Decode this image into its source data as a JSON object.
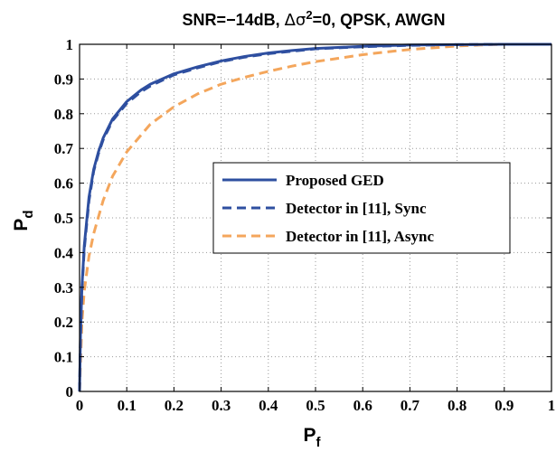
{
  "chart_data": {
    "type": "line",
    "title": {
      "prefix": "SNR=−14dB, ",
      "delta": "Δ",
      "sigma": "σ",
      "sup": "2",
      "suffix": "=0, QPSK, AWGN"
    },
    "xlabel": {
      "main": "P",
      "sub": "f"
    },
    "ylabel": {
      "main": "P",
      "sub": "d"
    },
    "xlim": [
      0,
      1
    ],
    "ylim": [
      0,
      1
    ],
    "xticks": [
      "0",
      "0.1",
      "0.2",
      "0.3",
      "0.4",
      "0.5",
      "0.6",
      "0.7",
      "0.8",
      "0.9",
      "1"
    ],
    "yticks": [
      "0",
      "0.1",
      "0.2",
      "0.3",
      "0.4",
      "0.5",
      "0.6",
      "0.7",
      "0.8",
      "0.9",
      "1"
    ],
    "grid": true,
    "legend_position": "center-right",
    "series": [
      {
        "name": "Proposed GED",
        "color": "#2e4fa0",
        "style": "solid",
        "points": [
          [
            0,
            0
          ],
          [
            0.002,
            0.16
          ],
          [
            0.005,
            0.3
          ],
          [
            0.01,
            0.42
          ],
          [
            0.02,
            0.56
          ],
          [
            0.03,
            0.64
          ],
          [
            0.04,
            0.69
          ],
          [
            0.05,
            0.73
          ],
          [
            0.07,
            0.785
          ],
          [
            0.1,
            0.835
          ],
          [
            0.13,
            0.868
          ],
          [
            0.15,
            0.885
          ],
          [
            0.2,
            0.915
          ],
          [
            0.25,
            0.935
          ],
          [
            0.3,
            0.952
          ],
          [
            0.35,
            0.965
          ],
          [
            0.4,
            0.975
          ],
          [
            0.45,
            0.982
          ],
          [
            0.5,
            0.988
          ],
          [
            0.6,
            0.994
          ],
          [
            0.7,
            0.998
          ],
          [
            0.8,
            0.999
          ],
          [
            0.9,
            1.0
          ],
          [
            1.0,
            1.0
          ]
        ]
      },
      {
        "name": "Detector in [11],  Sync",
        "color": "#2e4fa0",
        "style": "dashed",
        "points": [
          [
            0,
            0
          ],
          [
            0.002,
            0.155
          ],
          [
            0.005,
            0.29
          ],
          [
            0.01,
            0.41
          ],
          [
            0.02,
            0.55
          ],
          [
            0.03,
            0.635
          ],
          [
            0.04,
            0.685
          ],
          [
            0.05,
            0.725
          ],
          [
            0.07,
            0.78
          ],
          [
            0.1,
            0.83
          ],
          [
            0.13,
            0.863
          ],
          [
            0.15,
            0.88
          ],
          [
            0.2,
            0.912
          ],
          [
            0.25,
            0.932
          ],
          [
            0.3,
            0.95
          ],
          [
            0.35,
            0.963
          ],
          [
            0.4,
            0.973
          ],
          [
            0.45,
            0.98
          ],
          [
            0.5,
            0.987
          ],
          [
            0.6,
            0.993
          ],
          [
            0.7,
            0.997
          ],
          [
            0.8,
            0.999
          ],
          [
            0.9,
            1.0
          ],
          [
            1.0,
            1.0
          ]
        ]
      },
      {
        "name": "Detector in [11],  Async",
        "color": "#f4a65c",
        "style": "dashed",
        "points": [
          [
            0,
            0
          ],
          [
            0.005,
            0.2
          ],
          [
            0.01,
            0.29
          ],
          [
            0.02,
            0.39
          ],
          [
            0.03,
            0.455
          ],
          [
            0.05,
            0.55
          ],
          [
            0.07,
            0.62
          ],
          [
            0.1,
            0.69
          ],
          [
            0.15,
            0.77
          ],
          [
            0.2,
            0.82
          ],
          [
            0.25,
            0.857
          ],
          [
            0.3,
            0.885
          ],
          [
            0.35,
            0.905
          ],
          [
            0.4,
            0.922
          ],
          [
            0.45,
            0.937
          ],
          [
            0.5,
            0.95
          ],
          [
            0.55,
            0.96
          ],
          [
            0.6,
            0.97
          ],
          [
            0.65,
            0.978
          ],
          [
            0.7,
            0.985
          ],
          [
            0.75,
            0.99
          ],
          [
            0.8,
            0.995
          ],
          [
            0.85,
            0.998
          ],
          [
            0.9,
            1.0
          ],
          [
            1.0,
            1.0
          ]
        ]
      }
    ]
  }
}
